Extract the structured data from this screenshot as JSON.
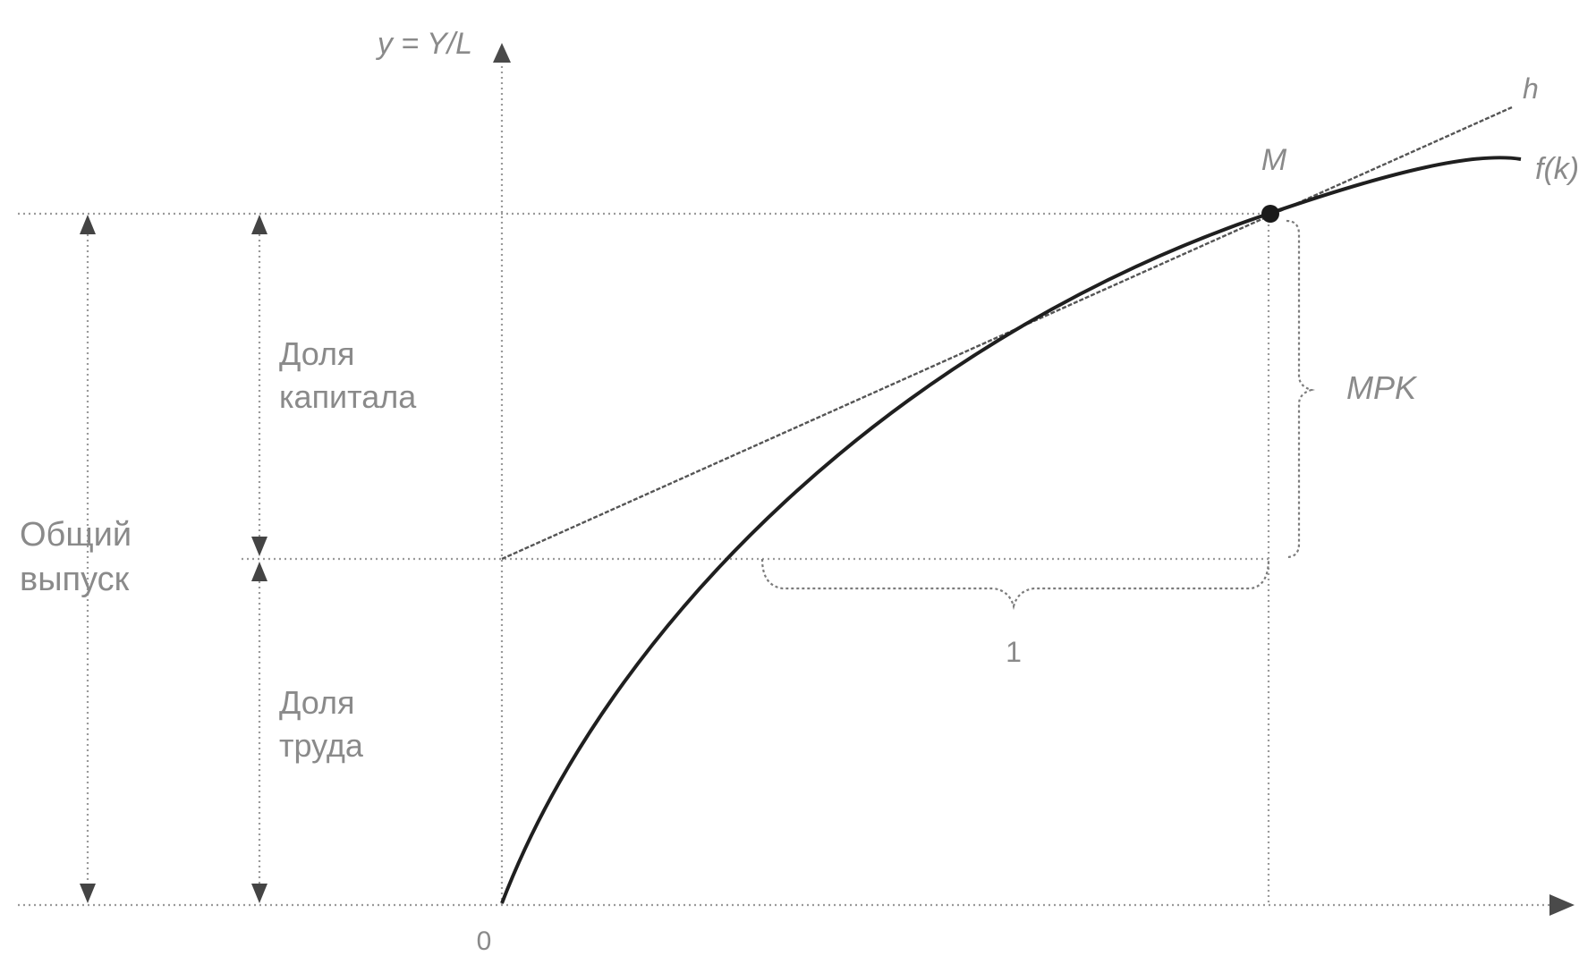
{
  "axes": {
    "y_label": "y = Y/L",
    "origin_label": "0"
  },
  "curves": {
    "production_label": "f(k)",
    "tangent_label": "h"
  },
  "point": {
    "label": "M"
  },
  "braces": {
    "vertical_label": "MPK",
    "horizontal_label": "1"
  },
  "shares": {
    "total_line1": "Общий",
    "total_line2": "выпуск",
    "capital_line1": "Доля",
    "capital_line2": "капитала",
    "labor_line1": "Доля",
    "labor_line2": "труда"
  }
}
